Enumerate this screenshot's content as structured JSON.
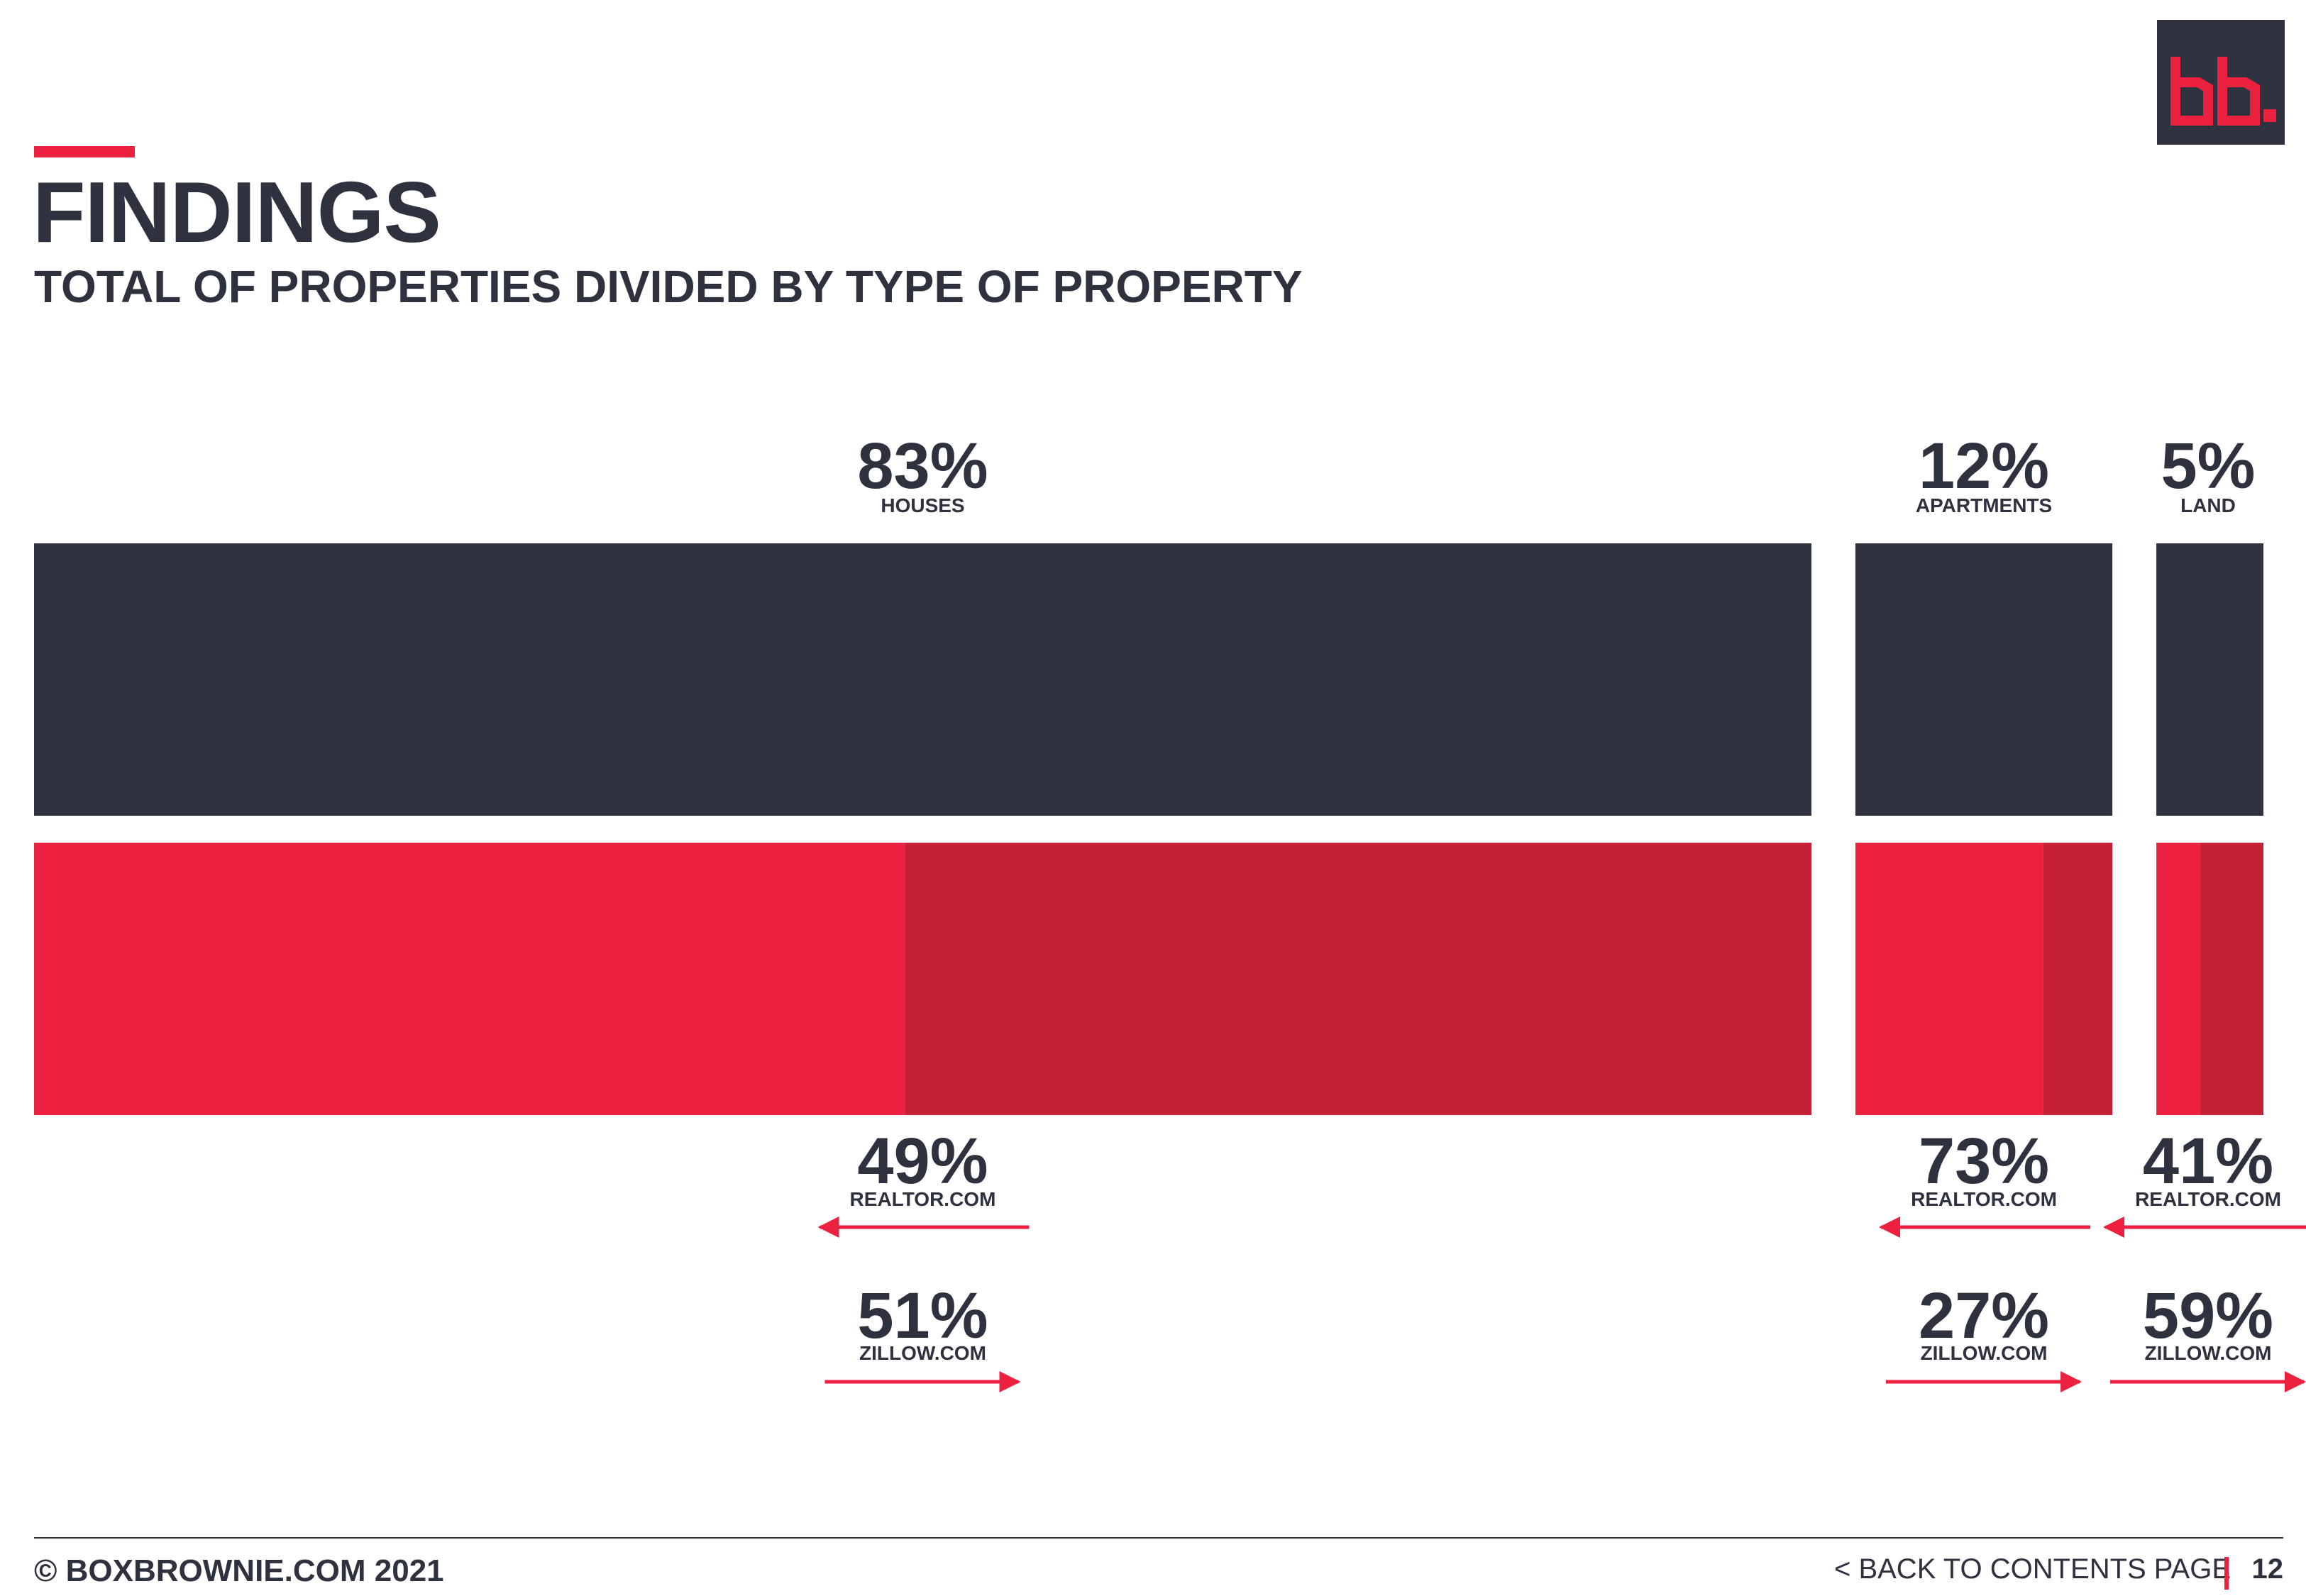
{
  "header": {
    "title": "FINDINGS",
    "subtitle": "TOTAL OF PROPERTIES DIVIDED BY TYPE OF PROPERTY"
  },
  "logo": {
    "text": "bb."
  },
  "colors": {
    "dark": "#2e313e",
    "red": "#ec2140",
    "dark_red": "#c52035",
    "background": "#ffffff"
  },
  "chart_data": {
    "type": "bar",
    "categories": [
      "HOUSES",
      "APARTMENTS",
      "LAND"
    ],
    "totals": [
      83,
      12,
      5
    ],
    "total_labels": [
      "83%",
      "12%",
      "5%"
    ],
    "series": [
      {
        "name": "REALTOR.COM",
        "values": [
          49,
          73,
          41
        ],
        "labels": [
          "49%",
          "73%",
          "41%"
        ]
      },
      {
        "name": "ZILLOW.COM",
        "values": [
          51,
          27,
          59
        ],
        "labels": [
          "51%",
          "27%",
          "59%"
        ]
      }
    ],
    "legend_labels": {
      "realtor": [
        "REALTOR.COM",
        "REALTOR.COM",
        "REALTOR.COM"
      ],
      "zillow": [
        "ZILLOW.COM",
        "ZILLOW.COM",
        "ZILLOW.COM"
      ]
    }
  },
  "footer": {
    "copyright": "© BOXBROWNIE.COM 2021",
    "back_link": "<  BACK TO CONTENTS PAGE",
    "page_number": "12"
  }
}
